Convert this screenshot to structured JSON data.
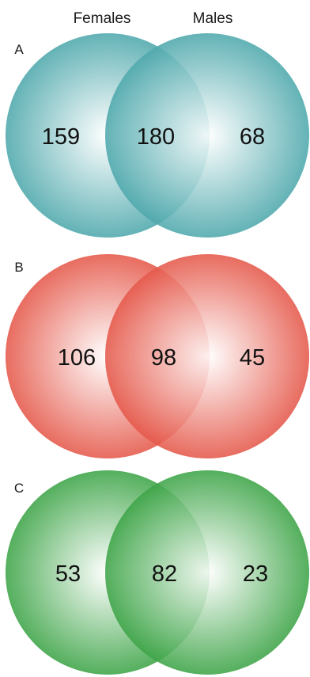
{
  "header": {
    "left_label": "Females",
    "right_label": "Males"
  },
  "panels": [
    {
      "letter": "A",
      "color": "#4ea8ac",
      "counts": {
        "females_only": "159",
        "shared": "180",
        "males_only": "68"
      }
    },
    {
      "letter": "B",
      "color": "#e5584a",
      "counts": {
        "females_only": "106",
        "shared": "98",
        "males_only": "45"
      }
    },
    {
      "letter": "C",
      "color": "#3da447",
      "counts": {
        "females_only": "53",
        "shared": "82",
        "males_only": "23"
      }
    }
  ]
}
